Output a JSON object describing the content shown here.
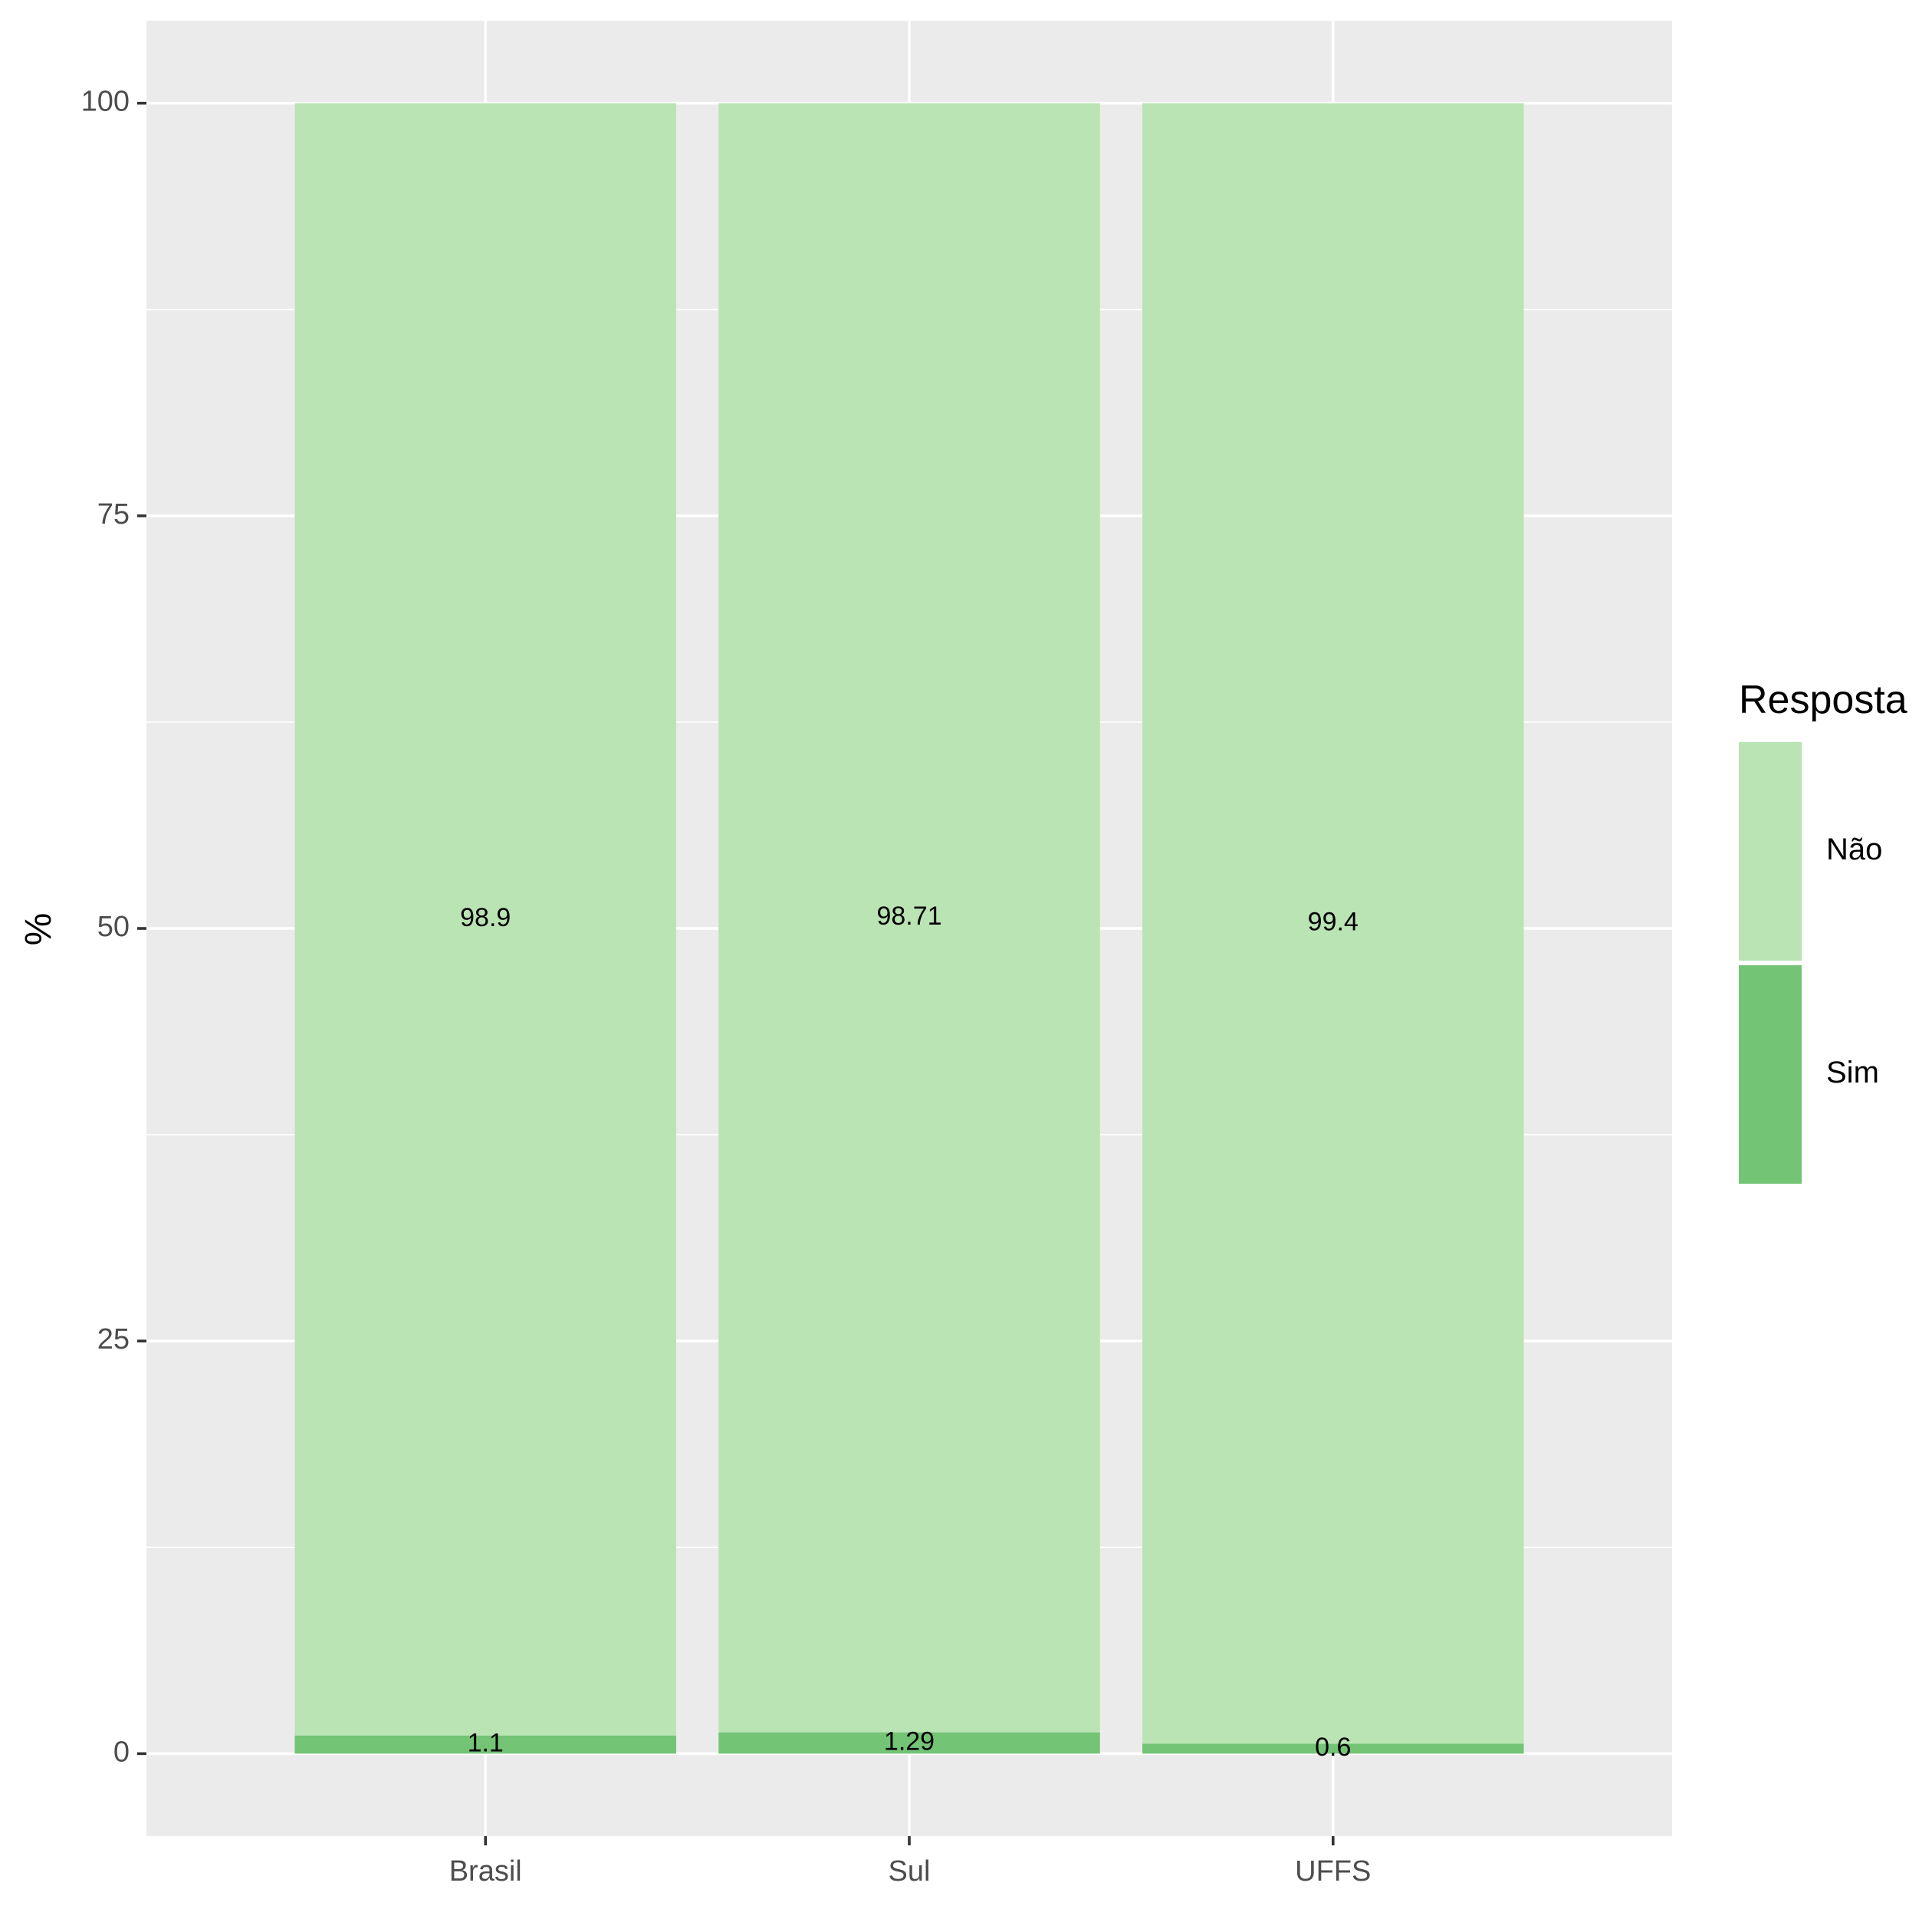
{
  "chart_data": {
    "type": "bar",
    "stacked": true,
    "categories": [
      "Brasil",
      "Sul",
      "UFFS"
    ],
    "series": [
      {
        "name": "Sim",
        "values": [
          1.1,
          1.29,
          0.6
        ],
        "labels": [
          "1.1",
          "1.29",
          "0.6"
        ],
        "color": "#74c476"
      },
      {
        "name": "Não",
        "values": [
          98.9,
          98.71,
          99.4
        ],
        "labels": [
          "98.9",
          "98.71",
          "99.4"
        ],
        "color": "#bae4b3"
      }
    ],
    "xlabel": "",
    "ylabel": "%",
    "ylim": [
      -5,
      105
    ],
    "yticks": [
      0,
      25,
      50,
      75,
      100
    ],
    "grid": true,
    "panel_background": "#ebebeb",
    "legend": {
      "title": "Resposta",
      "placement": "right",
      "entries": [
        "Não",
        "Sim"
      ]
    }
  }
}
